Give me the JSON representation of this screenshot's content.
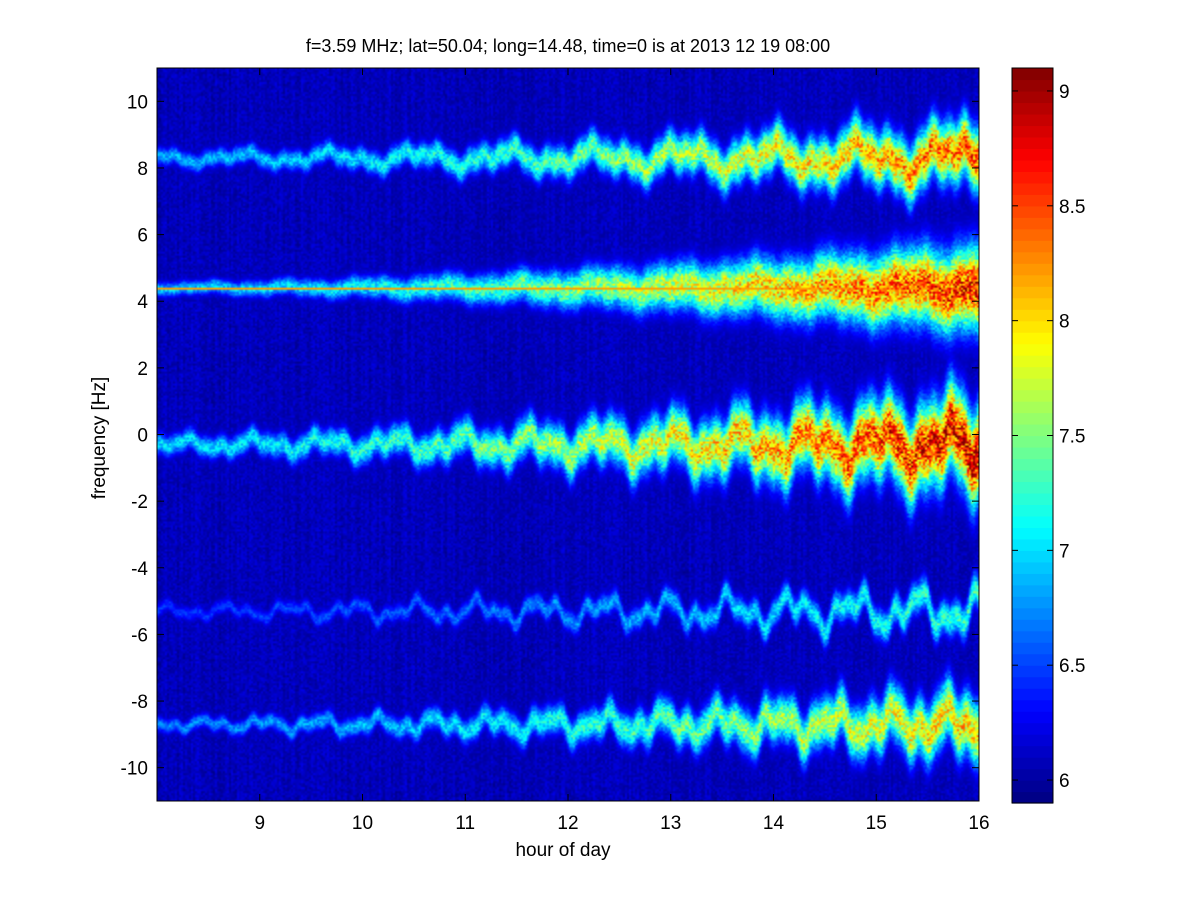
{
  "chart_data": {
    "type": "heatmap",
    "title": "f=3.59 MHz;  lat=50.04; long=14.48, time=0 is at 2013 12 19 08:00",
    "xlabel": "hour of day",
    "ylabel": "frequency [Hz]",
    "xlim": [
      8,
      16
    ],
    "ylim": [
      -11,
      11
    ],
    "x_ticks": [
      9,
      10,
      11,
      12,
      13,
      14,
      15,
      16
    ],
    "y_ticks": [
      -10,
      -8,
      -6,
      -4,
      -2,
      0,
      2,
      4,
      6,
      8,
      10
    ],
    "colorbar": {
      "min": 5.9,
      "max": 9.1,
      "ticks": [
        6,
        6.5,
        7,
        7.5,
        8,
        8.5,
        9
      ],
      "colormap": "jet"
    },
    "background_level": 6.0,
    "bands": [
      {
        "center_hz": 8.3,
        "wobble_hz": 0.25,
        "peak_level": 8.6,
        "spread_start_hz": 0.25,
        "spread_end_hz": 0.9
      },
      {
        "center_hz": 4.4,
        "wobble_hz": 0.1,
        "peak_level": 8.8,
        "spread_start_hz": 0.2,
        "spread_end_hz": 1.2
      },
      {
        "center_hz": -0.3,
        "wobble_hz": 0.3,
        "peak_level": 9.0,
        "spread_start_hz": 0.3,
        "spread_end_hz": 1.3
      },
      {
        "center_hz": -5.3,
        "wobble_hz": 0.3,
        "peak_level": 7.4,
        "spread_start_hz": 0.2,
        "spread_end_hz": 0.5
      },
      {
        "center_hz": -8.7,
        "wobble_hz": 0.25,
        "peak_level": 8.2,
        "spread_start_hz": 0.2,
        "spread_end_hz": 0.9
      }
    ],
    "constant_line_hz": 4.38
  }
}
